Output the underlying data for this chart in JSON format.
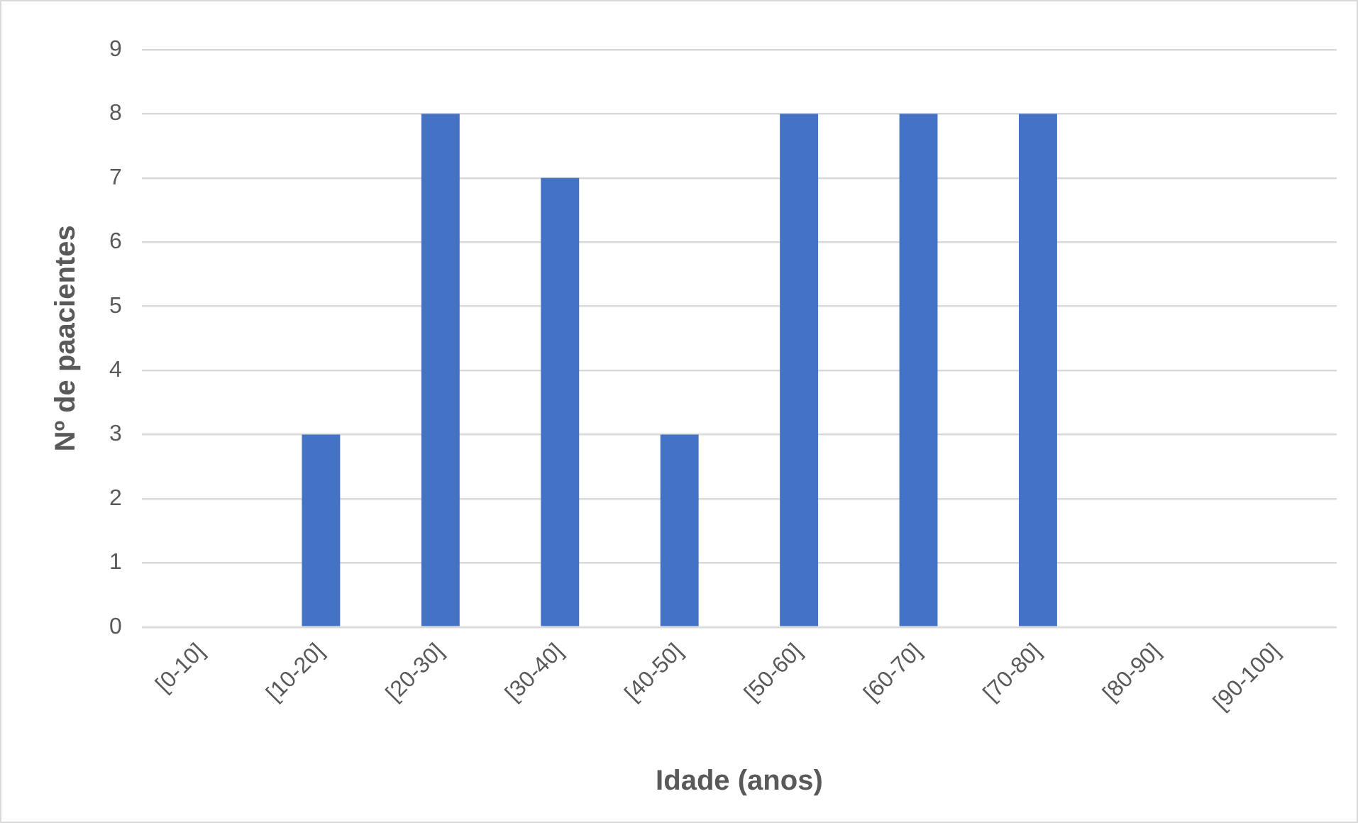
{
  "chart_data": {
    "type": "bar",
    "xlabel": "Idade (anos)",
    "ylabel": "Nº de paacientes",
    "categories": [
      "[0-10]",
      "[10-20]",
      "[20-30]",
      "[30-40]",
      "[40-50]",
      "[50-60]",
      "[60-70]",
      "[70-80]",
      "[80-90]",
      "[90-100]"
    ],
    "values": [
      0,
      3,
      8,
      7,
      3,
      8,
      8,
      8,
      0,
      0
    ],
    "color": "#4472c4",
    "ylim": [
      0,
      9
    ],
    "yticks": [
      0,
      1,
      2,
      3,
      4,
      5,
      6,
      7,
      8,
      9
    ],
    "grid": "y"
  }
}
